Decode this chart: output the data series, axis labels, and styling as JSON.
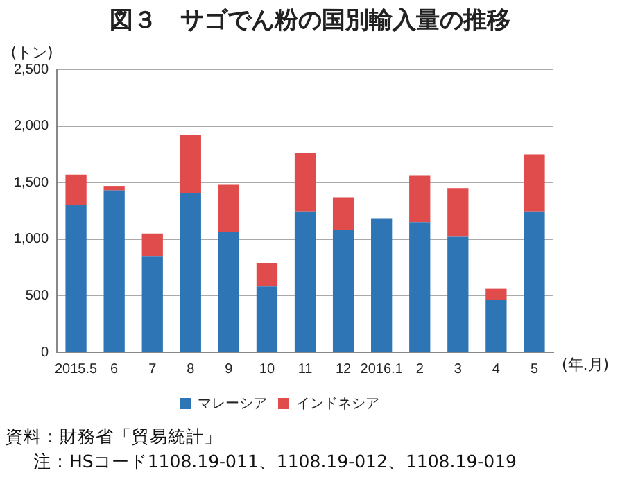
{
  "chart_data": {
    "type": "bar",
    "stacked": true,
    "title": "図３　サゴでん粉の国別輸入量の推移",
    "ylabel": "(トン)",
    "xlabel": "(年.月)",
    "categories": [
      "2015.5",
      "6",
      "7",
      "8",
      "9",
      "10",
      "11",
      "12",
      "2016.1",
      "2",
      "3",
      "4",
      "5"
    ],
    "series": [
      {
        "name": "マレーシア",
        "color": "#2e75b6",
        "values": [
          1300,
          1430,
          850,
          1410,
          1060,
          580,
          1240,
          1080,
          1180,
          1150,
          1020,
          460,
          1240
        ]
      },
      {
        "name": "インドネシア",
        "color": "#e04b4b",
        "values": [
          270,
          40,
          200,
          510,
          420,
          210,
          520,
          290,
          0,
          410,
          430,
          100,
          510
        ]
      }
    ],
    "ylim": [
      0,
      2500
    ],
    "yticks": [
      0,
      {
        "value": 500,
        "label": "500"
      },
      {
        "value": 1000,
        "label": "1,000"
      },
      {
        "value": 1500,
        "label": "1,500"
      },
      {
        "value": 2000,
        "label": "2,000"
      },
      {
        "value": 2500,
        "label": "2,500"
      }
    ],
    "grid": "y",
    "legend": "bottom",
    "annotations": [
      "資料：財務省「貿易統計」",
      "注：HSコード1108.19-011、1108.19-012、1108.19-019"
    ]
  }
}
